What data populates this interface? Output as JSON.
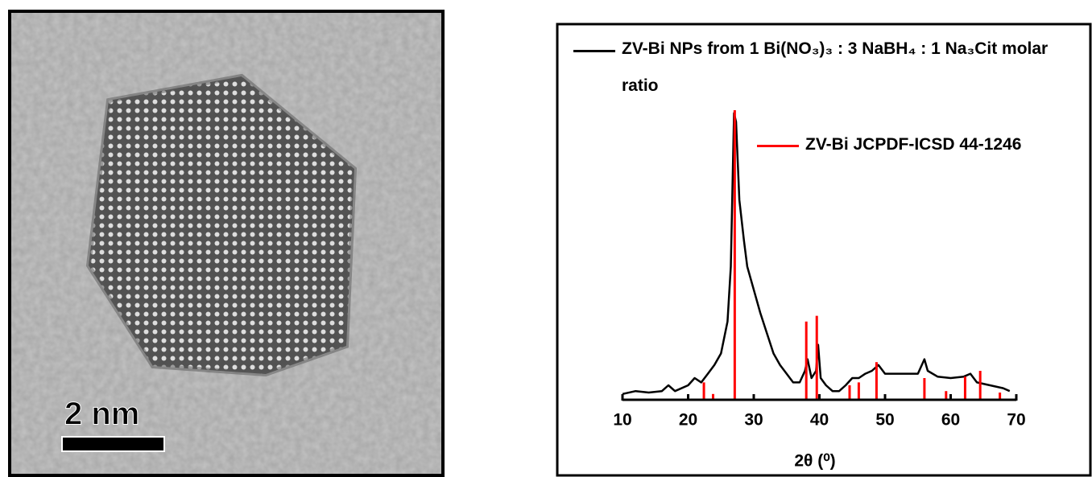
{
  "image_panel": {
    "scale_label": "2 nm"
  },
  "chart_data": {
    "type": "line",
    "xlabel": "2θ (⁰)",
    "xlim": [
      10,
      70
    ],
    "xticks": [
      10,
      20,
      30,
      40,
      50,
      60,
      70
    ],
    "ylim": [
      0,
      100
    ],
    "series": [
      {
        "name": "ZV-Bi NPs from 1 Bi(NO₃)₃ : 3 NaBH₄ : 1 Na₃Cit molar ratio",
        "type": "line",
        "color": "#000000",
        "x": [
          10,
          12,
          14,
          16,
          17,
          18,
          20,
          21,
          22,
          23,
          24,
          25,
          26,
          26.5,
          27,
          27.3,
          27.8,
          28.5,
          29,
          30,
          31,
          32,
          33,
          34,
          35,
          36,
          37,
          37.8,
          38.2,
          38.8,
          39.5,
          39.8,
          40.2,
          41,
          42,
          43,
          44,
          45,
          46,
          47,
          48,
          49,
          50,
          52,
          54,
          55,
          56,
          56.5,
          58,
          60,
          62,
          63,
          64,
          66,
          68,
          69
        ],
        "values": [
          2,
          3,
          2.5,
          3,
          5,
          3,
          5,
          7.5,
          6,
          9,
          12,
          16,
          27,
          46,
          99,
          96,
          69,
          55,
          46,
          38,
          30,
          23,
          16,
          12,
          9,
          6,
          6,
          10,
          14,
          7.5,
          10,
          19,
          7.5,
          5,
          3,
          3,
          5,
          7.5,
          7.5,
          9,
          10,
          12,
          9,
          9,
          9,
          9,
          14,
          10,
          8,
          7.5,
          8,
          9,
          6,
          5,
          4,
          3
        ]
      },
      {
        "name": "ZV-Bi JCPDF-ICSD 44-1246",
        "type": "stick",
        "color": "#ff0000",
        "x": [
          22.4,
          23.8,
          27.1,
          38.0,
          39.6,
          44.6,
          46.0,
          48.7,
          56.0,
          59.3,
          62.2,
          64.5,
          67.5
        ],
        "values": [
          6,
          2,
          100,
          27,
          29,
          5,
          6,
          13,
          7.5,
          3,
          8,
          10,
          2.5
        ]
      }
    ]
  }
}
